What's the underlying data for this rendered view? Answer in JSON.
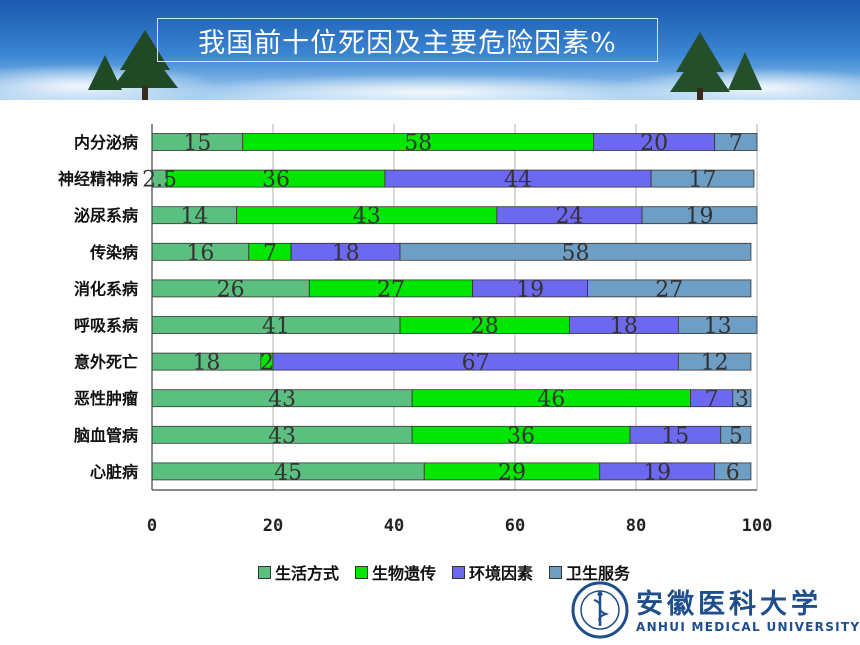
{
  "header": {
    "title": "我国前十位死因及主要危险因素%"
  },
  "legend": {
    "items": [
      "生活方式",
      "生物遗传",
      "环境因素",
      "卫生服务"
    ]
  },
  "colors": {
    "lifestyle": "#5bc07f",
    "genetics": "#00e600",
    "environment": "#6d68f0",
    "health_services": "#6f9ec4",
    "title_banner": "#1d5bb0"
  },
  "chart_data": {
    "type": "bar",
    "stacked": true,
    "orientation": "horizontal",
    "categories": [
      "内分泌病",
      "神经精神病",
      "泌尿系病",
      "传染病",
      "消化系病",
      "呼吸系病",
      "意外死亡",
      "恶性肿瘤",
      "脑血管病",
      "心脏病"
    ],
    "series": [
      {
        "name": "生活方式",
        "values": [
          15,
          2.5,
          14,
          16,
          26,
          41,
          18,
          43,
          43,
          45
        ]
      },
      {
        "name": "生物遗传",
        "values": [
          58,
          36,
          43,
          7,
          27,
          28,
          2,
          46,
          36,
          29
        ]
      },
      {
        "name": "环境因素",
        "values": [
          20,
          44,
          24,
          18,
          19,
          18,
          67,
          7,
          15,
          19
        ]
      },
      {
        "name": "卫生服务",
        "values": [
          7,
          17,
          19,
          58,
          27,
          13,
          12,
          3,
          5,
          6
        ]
      }
    ],
    "xlim": [
      0,
      100
    ],
    "x_ticks": [
      "0",
      "20",
      "40",
      "60",
      "80",
      "100"
    ],
    "legend_position": "bottom"
  },
  "logo": {
    "name_cn": "安徽医科大学",
    "name_en": "ANHUI MEDICAL UNIVERSITY"
  }
}
